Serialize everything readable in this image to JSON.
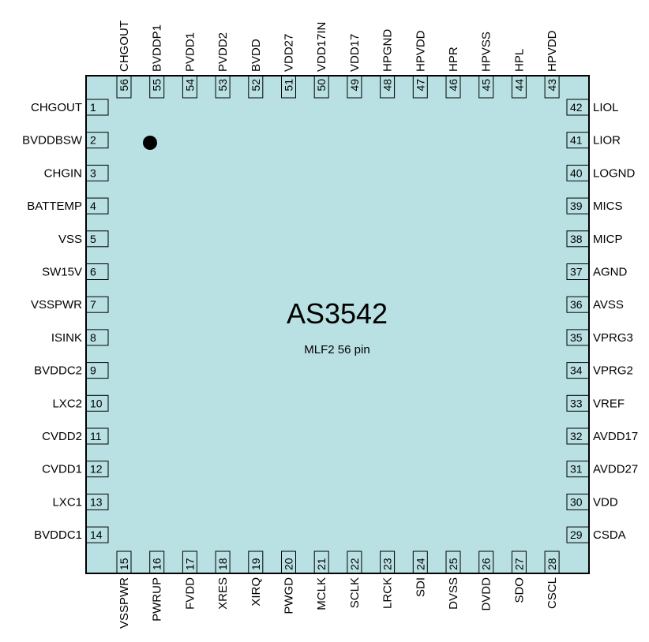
{
  "chip": {
    "name": "AS3542",
    "package": "MLF2 56 pin",
    "body_color": "#b9e0e2",
    "outline_color": "#000000"
  },
  "pins": {
    "left": [
      {
        "num": "1",
        "name": "CHGOUT"
      },
      {
        "num": "2",
        "name": "BVDDBSW"
      },
      {
        "num": "3",
        "name": "CHGIN"
      },
      {
        "num": "4",
        "name": "BATTEMP"
      },
      {
        "num": "5",
        "name": "VSS"
      },
      {
        "num": "6",
        "name": "SW15V"
      },
      {
        "num": "7",
        "name": "VSSPWR"
      },
      {
        "num": "8",
        "name": "ISINK"
      },
      {
        "num": "9",
        "name": "BVDDC2"
      },
      {
        "num": "10",
        "name": "LXC2"
      },
      {
        "num": "11",
        "name": "CVDD2"
      },
      {
        "num": "12",
        "name": "CVDD1"
      },
      {
        "num": "13",
        "name": "LXC1"
      },
      {
        "num": "14",
        "name": "BVDDC1"
      }
    ],
    "bottom": [
      {
        "num": "15",
        "name": "VSSPWR"
      },
      {
        "num": "16",
        "name": "PWRUP"
      },
      {
        "num": "17",
        "name": "FVDD"
      },
      {
        "num": "18",
        "name": "XRES"
      },
      {
        "num": "19",
        "name": "XIRQ"
      },
      {
        "num": "20",
        "name": "PWGD"
      },
      {
        "num": "21",
        "name": "MCLK"
      },
      {
        "num": "22",
        "name": "SCLK"
      },
      {
        "num": "23",
        "name": "LRCK"
      },
      {
        "num": "24",
        "name": "SDI"
      },
      {
        "num": "25",
        "name": "DVSS"
      },
      {
        "num": "26",
        "name": "DVDD"
      },
      {
        "num": "27",
        "name": "SDO"
      },
      {
        "num": "28",
        "name": "CSCL"
      }
    ],
    "right": [
      {
        "num": "29",
        "name": "CSDA"
      },
      {
        "num": "30",
        "name": "VDD"
      },
      {
        "num": "31",
        "name": "AVDD27"
      },
      {
        "num": "32",
        "name": "AVDD17"
      },
      {
        "num": "33",
        "name": "VREF"
      },
      {
        "num": "34",
        "name": "VPRG2"
      },
      {
        "num": "35",
        "name": "VPRG3"
      },
      {
        "num": "36",
        "name": "AVSS"
      },
      {
        "num": "37",
        "name": "AGND"
      },
      {
        "num": "38",
        "name": "MICP"
      },
      {
        "num": "39",
        "name": "MICS"
      },
      {
        "num": "40",
        "name": "LOGND"
      },
      {
        "num": "41",
        "name": "LIOR"
      },
      {
        "num": "42",
        "name": "LIOL"
      }
    ],
    "top": [
      {
        "num": "43",
        "name": "HPVDD"
      },
      {
        "num": "44",
        "name": "HPL"
      },
      {
        "num": "45",
        "name": "HPVSS"
      },
      {
        "num": "46",
        "name": "HPR"
      },
      {
        "num": "47",
        "name": "HPVDD"
      },
      {
        "num": "48",
        "name": "HPGND"
      },
      {
        "num": "49",
        "name": "VDD17"
      },
      {
        "num": "50",
        "name": "VDD17IN"
      },
      {
        "num": "51",
        "name": "VDD27"
      },
      {
        "num": "52",
        "name": "BVDD"
      },
      {
        "num": "53",
        "name": "PVDD2"
      },
      {
        "num": "54",
        "name": "PVDD1"
      },
      {
        "num": "55",
        "name": "BVDDP1"
      },
      {
        "num": "56",
        "name": "CHGOUT"
      }
    ]
  }
}
